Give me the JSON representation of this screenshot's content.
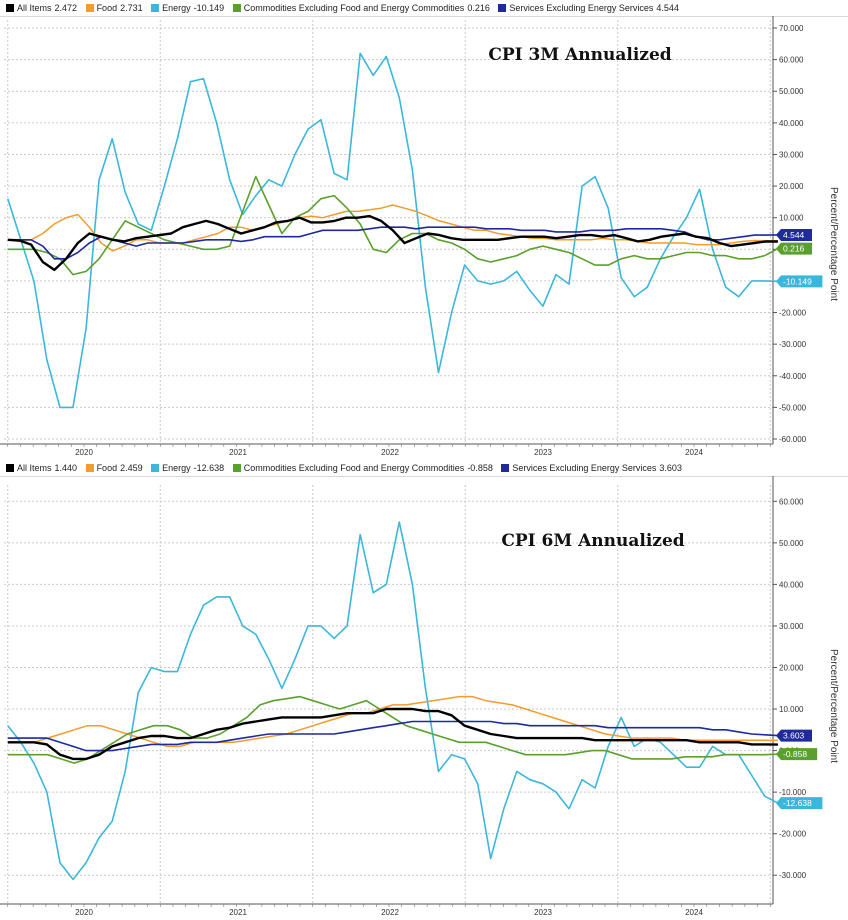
{
  "colors": {
    "all_items": "#000000",
    "food": "#f39c2d",
    "energy": "#3cb7dc",
    "commodities": "#5aa02c",
    "services": "#1f2a9c",
    "grid": "#c9c9c9"
  },
  "chart_data": [
    {
      "type": "line",
      "title": "CPI 3M Annualized",
      "ylabel": "Percent/Percentage Point",
      "ylim": [
        -60,
        70
      ],
      "y_ticks": [
        "70.000",
        "60.000",
        "50.000",
        "40.000",
        "30.000",
        "20.000",
        "10.000",
        "0.000",
        "-10.000",
        "-20.000",
        "-30.000",
        "-40.000",
        "-50.000",
        "-60.000"
      ],
      "x_ticks": [
        "2020",
        "2021",
        "2022",
        "2023",
        "2024"
      ],
      "legend": [
        {
          "label": "All Items",
          "value": "2.472"
        },
        {
          "label": "Food",
          "value": "2.731"
        },
        {
          "label": "Energy",
          "value": "-10.149"
        },
        {
          "label": "Commodities Excluding Food and Energy Commodities",
          "value": "0.216"
        },
        {
          "label": "Services Excluding Energy Services",
          "value": "4.544"
        }
      ],
      "tags": [
        {
          "series": "services",
          "text": "4.544",
          "value": 4.544
        },
        {
          "series": "commodities",
          "text": "0.216",
          "value": 0.216
        },
        {
          "series": "energy",
          "text": "-10.149",
          "value": -10.149
        }
      ],
      "series": [
        {
          "name": "All Items",
          "key": "all_items",
          "values": [
            3,
            2.8,
            1.5,
            -4,
            -6.5,
            -3,
            2,
            5,
            4,
            3,
            2.5,
            3.5,
            4,
            4.5,
            5,
            7,
            8,
            9,
            8,
            6.5,
            5,
            6,
            7,
            8.5,
            9,
            10,
            8.5,
            8.5,
            9,
            10,
            10,
            10.5,
            9,
            6,
            2,
            3.5,
            5,
            4.5,
            3.5,
            3,
            3,
            3,
            3,
            3.5,
            4,
            4,
            4,
            3.5,
            4,
            4.5,
            4.5,
            4,
            4.5,
            3.5,
            2.5,
            3,
            4,
            4.5,
            5,
            4,
            3.5,
            2,
            1,
            1.5,
            2,
            2.5,
            2.472
          ]
        },
        {
          "name": "Food",
          "key": "food",
          "values": [
            3,
            2.5,
            3,
            5,
            8,
            10,
            11,
            7,
            2,
            -0.5,
            1,
            3,
            3,
            2,
            2,
            2,
            3,
            4,
            5,
            7,
            7,
            6,
            7,
            8,
            9,
            10,
            10.5,
            10,
            11,
            12,
            12,
            12.5,
            13,
            14,
            13,
            12,
            10.5,
            9,
            8,
            7,
            6,
            6,
            5,
            4.5,
            4,
            3.5,
            3.5,
            3,
            3,
            3,
            3,
            3.5,
            3,
            3,
            2.5,
            2,
            2,
            2,
            2,
            1.5,
            1.5,
            1.5,
            2,
            2.5,
            2.8,
            2.7,
            2.731
          ]
        },
        {
          "name": "Energy",
          "key": "energy",
          "values": [
            16,
            3,
            -10,
            -35,
            -50,
            -50,
            -25,
            22,
            35,
            18,
            8,
            6,
            20,
            35,
            53,
            54,
            40,
            22,
            11,
            17,
            22,
            20,
            30,
            38,
            41,
            24,
            22,
            62,
            55,
            61,
            48,
            25,
            -12,
            -39,
            -20,
            -5,
            -10,
            -11,
            -10,
            -7,
            -13,
            -18,
            -8,
            -11,
            20,
            23,
            13,
            -9,
            -15,
            -12,
            -3,
            4,
            10,
            19,
            0,
            -12,
            -15,
            -10,
            -10,
            -10.149
          ]
        },
        {
          "name": "Commodities Excluding Food and Energy Commodities",
          "key": "commodities",
          "values": [
            0,
            0,
            0,
            -1,
            -3,
            -8,
            -7,
            -3,
            3,
            9,
            7,
            5,
            3,
            2,
            1,
            0,
            0,
            1,
            12,
            23,
            14,
            5,
            10,
            12,
            16,
            17,
            13,
            8,
            0,
            -1,
            3,
            5,
            5,
            3,
            2,
            0,
            -3,
            -4,
            -3,
            -2,
            0,
            1,
            0,
            -1,
            -3,
            -5,
            -5,
            -3,
            -2,
            -3,
            -3,
            -2,
            -1,
            -1,
            -2,
            -2,
            -3,
            -3,
            -2,
            0.216
          ]
        },
        {
          "name": "Services Excluding Energy Services",
          "key": "services",
          "values": [
            3,
            3,
            3,
            1,
            -3,
            -3,
            -1,
            2,
            4,
            3,
            2,
            1,
            2,
            2,
            2,
            2,
            2.5,
            3,
            3,
            3,
            2.5,
            3,
            4,
            4,
            4,
            4,
            5,
            6,
            6,
            6,
            6,
            6.5,
            7,
            7,
            7,
            6.5,
            7,
            7,
            7,
            7,
            7,
            6.5,
            6.5,
            6.5,
            6,
            6,
            6,
            5.5,
            5.5,
            5.5,
            6,
            6,
            6,
            6.5,
            6.5,
            6.5,
            6.5,
            6,
            5.5,
            4,
            3,
            3,
            3.5,
            4,
            4.5,
            4.5,
            4.544
          ]
        }
      ]
    },
    {
      "type": "line",
      "title": "CPI 6M Annualized",
      "ylabel": "Percent/Percentage Point",
      "ylim": [
        -35,
        62
      ],
      "y_ticks": [
        "60.000",
        "50.000",
        "40.000",
        "30.000",
        "20.000",
        "10.000",
        "0.000",
        "-10.000",
        "-20.000",
        "-30.000"
      ],
      "x_ticks": [
        "2020",
        "2021",
        "2022",
        "2023",
        "2024"
      ],
      "legend": [
        {
          "label": "All Items",
          "value": "1.440"
        },
        {
          "label": "Food",
          "value": "2.459"
        },
        {
          "label": "Energy",
          "value": "-12.638"
        },
        {
          "label": "Commodities Excluding Food and Energy Commodities",
          "value": "-0.858"
        },
        {
          "label": "Services Excluding Energy Services",
          "value": "3.603"
        }
      ],
      "tags": [
        {
          "series": "services",
          "text": "3.603",
          "value": 3.603
        },
        {
          "series": "commodities",
          "text": "-0.858",
          "value": -0.858
        },
        {
          "series": "energy",
          "text": "-12.638",
          "value": -12.638
        }
      ],
      "series": [
        {
          "name": "All Items",
          "key": "all_items",
          "values": [
            2,
            2,
            2,
            1.5,
            -1,
            -2,
            -2,
            -1,
            1,
            2,
            3,
            3.5,
            3.5,
            3,
            3,
            4,
            5,
            5.5,
            6.5,
            7,
            7.5,
            8,
            8,
            8,
            8,
            8.5,
            9,
            9,
            9,
            10,
            10,
            10,
            9.5,
            9.5,
            8.5,
            6,
            5,
            4,
            3.5,
            3,
            3,
            3,
            3,
            3,
            3,
            2.5,
            2.5,
            2.5,
            2.5,
            2.5,
            2.5,
            2.5,
            2.5,
            2,
            2,
            2,
            2,
            1.5,
            1.5,
            1.44
          ]
        },
        {
          "name": "Food",
          "key": "food",
          "values": [
            2,
            2,
            2,
            3,
            4,
            5,
            6,
            6,
            5,
            4,
            3,
            2,
            1,
            1,
            2,
            2,
            2,
            2,
            2.5,
            3,
            3.5,
            4,
            5,
            6,
            7,
            8,
            9,
            9,
            10,
            11,
            11,
            11.5,
            12,
            12.5,
            13,
            13,
            12,
            11.5,
            11,
            10,
            9,
            8,
            7,
            6,
            5,
            4,
            3.5,
            3,
            3,
            3,
            3,
            2.5,
            2.5,
            2.5,
            2.5,
            2.5,
            2.5,
            2.5,
            2.459
          ]
        },
        {
          "name": "Energy",
          "key": "energy",
          "values": [
            6,
            2,
            -3,
            -10,
            -27,
            -31,
            -27,
            -21,
            -17,
            -5,
            14,
            20,
            19,
            19,
            28,
            35,
            37,
            37,
            30,
            28,
            22,
            15,
            22,
            30,
            30,
            27,
            30,
            52,
            38,
            40,
            55,
            40,
            15,
            -5,
            -1,
            -2,
            -8,
            -26,
            -14,
            -5,
            -7,
            -8,
            -10,
            -14,
            -7,
            -9,
            1,
            8,
            1,
            3,
            2,
            -1,
            -4,
            -4,
            1,
            -1,
            -1,
            -6,
            -11,
            -12.638
          ]
        },
        {
          "name": "Commodities Excluding Food and Energy Commodities",
          "key": "commodities",
          "values": [
            -1,
            -1,
            -1,
            -1,
            -2,
            -3,
            -2,
            0,
            2,
            4,
            5,
            6,
            6,
            5,
            3,
            3,
            4,
            6,
            8,
            11,
            12,
            12.5,
            13,
            12,
            11,
            10,
            11,
            12,
            10,
            8,
            6,
            5,
            4,
            3,
            2,
            2,
            2,
            1,
            0,
            -1,
            -1,
            -1,
            -1,
            -0.5,
            0,
            0,
            -1,
            -2,
            -2,
            -2,
            -2,
            -1.5,
            -1.5,
            -1.5,
            -1,
            -1,
            -1,
            -1,
            -0.858
          ]
        },
        {
          "name": "Services Excluding Energy Services",
          "key": "services",
          "values": [
            3,
            3,
            3,
            3,
            2,
            1,
            0,
            0,
            0,
            0.5,
            1,
            1.5,
            1.5,
            1.5,
            2,
            2,
            2,
            2.5,
            3,
            3.5,
            4,
            4,
            4,
            4,
            4,
            4,
            4.5,
            5,
            5.5,
            6,
            6.5,
            7,
            7,
            7,
            7,
            7,
            7,
            7,
            6.5,
            6.5,
            6,
            6,
            6,
            6,
            6,
            6,
            5.5,
            5.5,
            5.5,
            5.5,
            5.5,
            5.5,
            5.5,
            5.5,
            5,
            5,
            4.5,
            4,
            3.8,
            3.603
          ]
        }
      ]
    }
  ]
}
